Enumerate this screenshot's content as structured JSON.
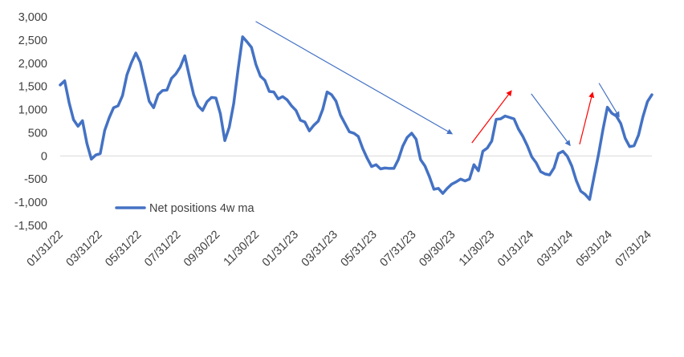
{
  "chart_data": {
    "type": "line",
    "title": "",
    "xlabel": "",
    "ylabel": "",
    "ylim": [
      -1500,
      3000
    ],
    "y_ticks": [
      "3,000",
      "2,500",
      "2,000",
      "1,500",
      "1,000",
      "500",
      "0",
      "-500",
      "-1,000",
      "-1,500"
    ],
    "x_ticks": [
      "01/31/22",
      "03/31/22",
      "05/31/22",
      "07/31/22",
      "09/30/22",
      "11/30/22",
      "01/31/23",
      "03/31/23",
      "05/31/23",
      "07/31/23",
      "09/30/23",
      "11/30/23",
      "01/31/24",
      "03/31/24",
      "05/31/24",
      "07/31/24"
    ],
    "grid": false,
    "legend_position": "lower-left",
    "series": [
      {
        "name": "Net positions 4w ma",
        "color": "#4472C4",
        "values": [
          1530,
          1620,
          1150,
          780,
          640,
          760,
          270,
          -70,
          20,
          50,
          550,
          820,
          1040,
          1080,
          1300,
          1750,
          2010,
          2220,
          2020,
          1600,
          1180,
          1040,
          1320,
          1410,
          1420,
          1670,
          1770,
          1920,
          2160,
          1730,
          1320,
          1080,
          980,
          1170,
          1260,
          1250,
          910,
          330,
          620,
          1130,
          1880,
          2570,
          2460,
          2340,
          1970,
          1720,
          1630,
          1390,
          1380,
          1230,
          1280,
          1210,
          1080,
          980,
          770,
          730,
          540,
          660,
          750,
          1000,
          1380,
          1320,
          1180,
          880,
          700,
          520,
          490,
          420,
          160,
          -50,
          -230,
          -190,
          -280,
          -260,
          -270,
          -270,
          -80,
          210,
          400,
          490,
          360,
          -80,
          -220,
          -450,
          -720,
          -700,
          -810,
          -700,
          -610,
          -560,
          -500,
          -540,
          -500,
          -190,
          -320,
          100,
          170,
          320,
          790,
          800,
          860,
          830,
          800,
          580,
          420,
          220,
          -20,
          -150,
          -340,
          -390,
          -410,
          -260,
          50,
          100,
          -10,
          -220,
          -530,
          -760,
          -830,
          -940,
          -450,
          30,
          570,
          1050,
          920,
          860,
          700,
          380,
          200,
          220,
          450,
          850,
          1170,
          1320
        ]
      }
    ],
    "annotations": [
      {
        "label": "trend-arrow-down-1",
        "color": "#4472C4",
        "from": {
          "x": "11/30/22",
          "y": 2900
        },
        "to": {
          "x": "09/30/23",
          "y": 480
        }
      },
      {
        "label": "trend-arrow-up-1",
        "color": "#FF0000",
        "from": {
          "x": "10/31/23",
          "y": 280
        },
        "to": {
          "x": "12/31/23",
          "y": 1400
        }
      },
      {
        "label": "trend-arrow-down-2",
        "color": "#4472C4",
        "from": {
          "x": "01/31/24",
          "y": 1340
        },
        "to": {
          "x": "03/31/24",
          "y": 230
        }
      },
      {
        "label": "trend-arrow-up-2",
        "color": "#FF0000",
        "from": {
          "x": "04/15/24",
          "y": 250
        },
        "to": {
          "x": "05/05/24",
          "y": 1360
        }
      },
      {
        "label": "trend-arrow-down-3",
        "color": "#4472C4",
        "from": {
          "x": "05/15/24",
          "y": 1570
        },
        "to": {
          "x": "06/15/24",
          "y": 850
        }
      }
    ]
  }
}
